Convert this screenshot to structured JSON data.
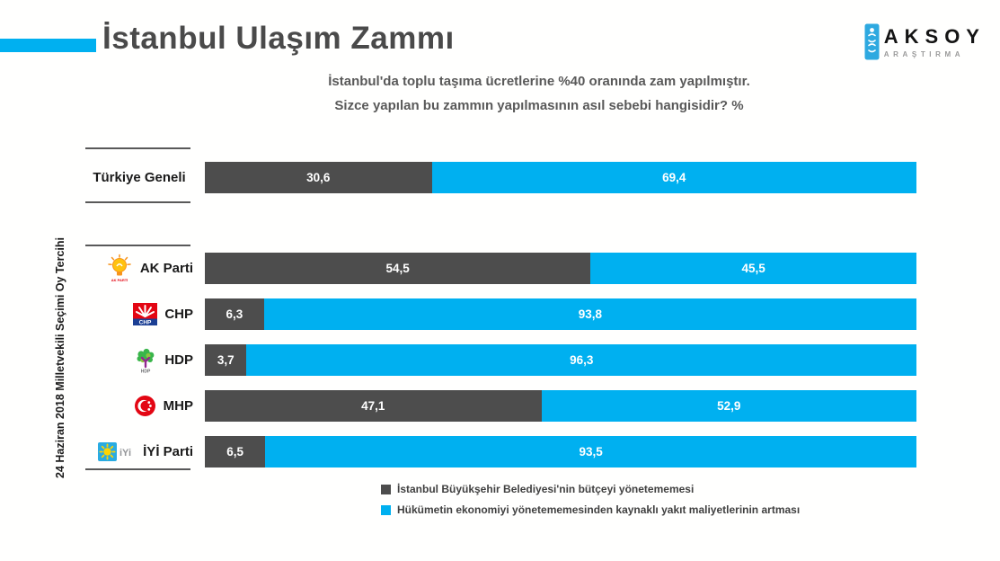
{
  "header": {
    "title": "İstanbul Ulaşım Zammı",
    "subtitle_line1": "İstanbul'da toplu taşıma ücretlerine %40 oranında zam yapılmıştır.",
    "subtitle_line2": "Sizce yapılan bu zammın yapılmasının asıl sebebi hangisidir? %"
  },
  "logo": {
    "name": "AKSOY",
    "subtext": "ARAŞTIRMA"
  },
  "axis_group_label": "24 Haziran 2018 Milletvekili Seçimi Oy Tercihi",
  "colors": {
    "accent_blue": "#00B0F0",
    "series1_dark_gray": "#4D4D4D",
    "series2_blue": "#00B0F0",
    "rule_line": "#595959"
  },
  "chart_data": {
    "type": "bar",
    "orientation": "horizontal",
    "stacked": true,
    "xlim": [
      0,
      100
    ],
    "grid": false,
    "legend_position": "bottom",
    "title": "İstanbul Ulaşım Zammı",
    "categories": [
      "Türkiye Geneli",
      "AK Parti",
      "CHP",
      "HDP",
      "MHP",
      "İYİ Parti"
    ],
    "category_icons": [
      null,
      "ak-parti-logo",
      "chp-logo",
      "hdp-logo",
      "mhp-logo",
      "iyi-parti-logo"
    ],
    "series": [
      {
        "name": "İstanbul Büyükşehir Belediyesi'nin bütçeyi yönetememesi",
        "color": "#4D4D4D",
        "values": [
          30.6,
          54.5,
          6.3,
          3.7,
          47.1,
          6.5
        ]
      },
      {
        "name": "Hükümetin ekonomiyi yönetememesinden kaynaklı yakıt maliyetlerinin artması",
        "color": "#00B0F0",
        "values": [
          69.4,
          45.5,
          93.8,
          96.3,
          52.9,
          93.5
        ]
      }
    ],
    "value_labels": [
      [
        "30,6",
        "69,4"
      ],
      [
        "54,5",
        "45,5"
      ],
      [
        "6,3",
        "93,8"
      ],
      [
        "3,7",
        "96,3"
      ],
      [
        "47,1",
        "52,9"
      ],
      [
        "6,5",
        "93,5"
      ]
    ]
  }
}
